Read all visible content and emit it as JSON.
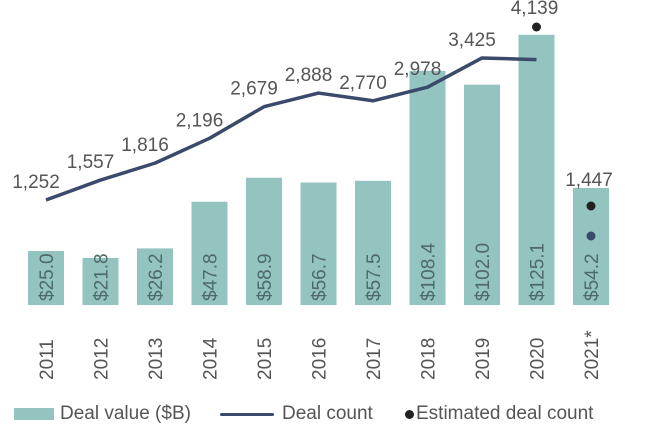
{
  "chart_data": {
    "type": "bar",
    "categories": [
      "2011",
      "2012",
      "2013",
      "2014",
      "2015",
      "2016",
      "2017",
      "2018",
      "2019",
      "2020",
      "2021*"
    ],
    "series": [
      {
        "name": "Deal value ($B)",
        "type": "bar",
        "values": [
          25.0,
          21.8,
          26.2,
          47.8,
          58.9,
          56.7,
          57.5,
          108.4,
          102.0,
          125.1,
          54.2
        ],
        "labels": [
          "$25.0",
          "$21.8",
          "$26.2",
          "$47.8",
          "$58.9",
          "$56.7",
          "$57.5",
          "$108.4",
          "$102.0",
          "$125.1",
          "$54.2"
        ]
      },
      {
        "name": "Deal count",
        "type": "line",
        "values": [
          1252,
          1557,
          1816,
          2196,
          2679,
          2888,
          2770,
          2978,
          3425,
          3400,
          null
        ],
        "labels": [
          "1,252",
          "1,557",
          "1,816",
          "2,196",
          "2,679",
          "2,888",
          "2,770",
          "2,978",
          "3,425",
          "",
          ""
        ]
      },
      {
        "name": "Estimated deal count",
        "type": "scatter",
        "values": [
          null,
          null,
          null,
          null,
          null,
          null,
          null,
          null,
          null,
          4139,
          1447
        ],
        "labels": [
          "",
          "",
          "",
          "",
          "",
          "",
          "",
          "",
          "",
          "4,139",
          "1,447"
        ]
      }
    ],
    "extra_points": [
      {
        "category": "2021*",
        "value": 700,
        "series": "Deal count"
      }
    ],
    "colors": {
      "bar": "#93c4c0",
      "line": "#3a4a6b",
      "estimate": "#222222",
      "text": "#555555"
    },
    "legend_position": "bottom",
    "grid": false
  },
  "legend": {
    "bar": "Deal value ($B)",
    "line": "Deal count",
    "dot": "Estimated deal count"
  }
}
